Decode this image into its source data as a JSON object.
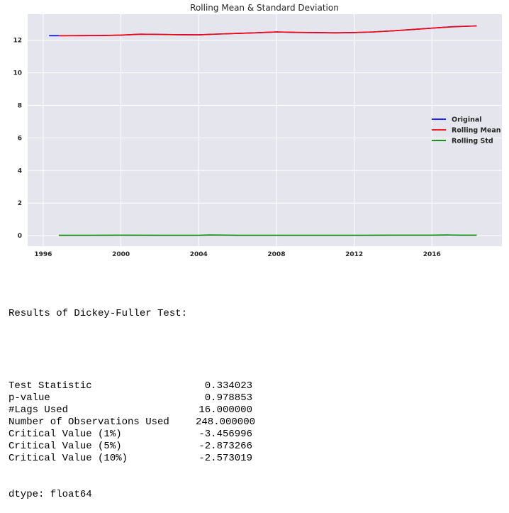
{
  "chart_data": {
    "type": "line",
    "title": "Rolling Mean & Standard Deviation",
    "xlabel": "",
    "ylabel": "",
    "xlim": [
      1995.2,
      2019.6
    ],
    "ylim": [
      -0.65,
      13.6
    ],
    "x_ticks": [
      1996,
      2000,
      2004,
      2008,
      2012,
      2016
    ],
    "y_ticks": [
      0,
      2,
      4,
      6,
      8,
      10,
      12
    ],
    "grid": true,
    "legend_position": "center-right",
    "series": [
      {
        "name": "Original",
        "color": "#0000ff",
        "x": [
          1996.3,
          1997,
          1998,
          1999,
          2000,
          2001,
          2002,
          2003,
          2004,
          2005,
          2006,
          2007,
          2008,
          2009,
          2010,
          2011,
          2012,
          2013,
          2014,
          2015,
          2016,
          2017,
          2018.3
        ],
        "y": [
          12.28,
          12.28,
          12.28,
          12.29,
          12.31,
          12.37,
          12.36,
          12.34,
          12.33,
          12.38,
          12.42,
          12.46,
          12.51,
          12.48,
          12.47,
          12.46,
          12.47,
          12.51,
          12.58,
          12.66,
          12.74,
          12.83,
          12.88
        ]
      },
      {
        "name": "Rolling Mean",
        "color": "#ff0000",
        "x": [
          1996.8,
          1997,
          1998,
          1999,
          2000,
          2001,
          2002,
          2003,
          2004,
          2005,
          2006,
          2007,
          2008,
          2009,
          2010,
          2011,
          2012,
          2013,
          2014,
          2015,
          2016,
          2017,
          2018.3
        ],
        "y": [
          12.28,
          12.28,
          12.29,
          12.29,
          12.32,
          12.37,
          12.36,
          12.34,
          12.33,
          12.38,
          12.42,
          12.46,
          12.51,
          12.48,
          12.47,
          12.45,
          12.47,
          12.51,
          12.58,
          12.66,
          12.74,
          12.82,
          12.88
        ]
      },
      {
        "name": "Rolling Std",
        "color": "#008000",
        "x": [
          1996.8,
          1998,
          2000,
          2002,
          2004,
          2004.6,
          2006,
          2008,
          2010,
          2012,
          2014,
          2016,
          2016.8,
          2017.5,
          2018.3
        ],
        "y": [
          0.02,
          0.02,
          0.03,
          0.02,
          0.02,
          0.04,
          0.02,
          0.02,
          0.02,
          0.02,
          0.03,
          0.03,
          0.04,
          0.03,
          0.03
        ]
      }
    ]
  },
  "output": {
    "heading": "Results of Dickey-Fuller Test:",
    "stats": [
      {
        "name": "Test Statistic",
        "value": "0.334023"
      },
      {
        "name": "p-value",
        "value": "0.978853"
      },
      {
        "name": "#Lags Used",
        "value": "16.000000"
      },
      {
        "name": "Number of Observations Used",
        "value": "248.000000"
      },
      {
        "name": "Critical Value (1%)",
        "value": "-3.456996"
      },
      {
        "name": "Critical Value (5%)",
        "value": "-2.873266"
      },
      {
        "name": "Critical Value (10%)",
        "value": "-2.573019"
      }
    ],
    "dtype": "dtype: float64"
  }
}
